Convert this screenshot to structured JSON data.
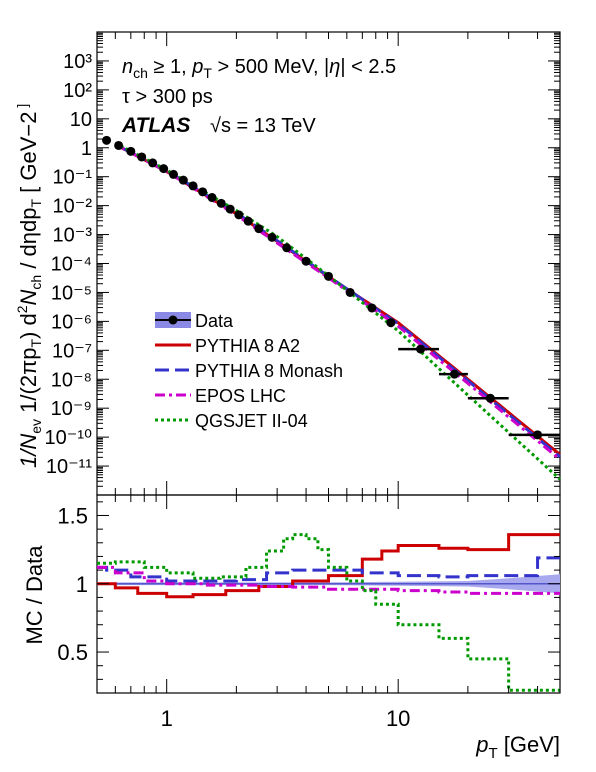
{
  "chart_data": [
    {
      "type": "line",
      "panel": "top",
      "xscale": "log",
      "yscale": "log",
      "xlim": [
        0.5,
        50
      ],
      "ylim": [
        1e-12,
        10000.0
      ],
      "ylabel_parts": [
        "1/N",
        "ev",
        " 1/(2πp",
        "T",
        ") d",
        "2",
        "N",
        "ch",
        " / dηdp",
        "T",
        " [ GeV",
        "−2",
        " ]"
      ],
      "yticks": [
        {
          "exp": -11,
          "label": "10⁻¹¹"
        },
        {
          "exp": -10,
          "label": "10⁻¹⁰"
        },
        {
          "exp": -9,
          "label": "10⁻⁹"
        },
        {
          "exp": -8,
          "label": "10⁻⁸"
        },
        {
          "exp": -7,
          "label": "10⁻⁷"
        },
        {
          "exp": -6,
          "label": "10⁻⁶"
        },
        {
          "exp": -5,
          "label": "10⁻⁵"
        },
        {
          "exp": -4,
          "label": "10⁻⁴"
        },
        {
          "exp": -3,
          "label": "10⁻³"
        },
        {
          "exp": -2,
          "label": "10⁻²"
        },
        {
          "exp": -1,
          "label": "10⁻¹"
        },
        {
          "exp": 0,
          "label": "1"
        },
        {
          "exp": 1,
          "label": "10"
        },
        {
          "exp": 2,
          "label": "10²"
        },
        {
          "exp": 3,
          "label": "10³"
        }
      ],
      "annotations": {
        "selection_line1": "n_ch ≥ 1,  p_T > 500 MeV,  |η| < 2.5",
        "selection_line2": "τ > 300 ps",
        "experiment": "ATLAS",
        "energy": "√s = 13 TeV"
      },
      "legend_position": "lower-left",
      "legend": [
        {
          "label": "Data",
          "color": "#000000",
          "style": "markers-band"
        },
        {
          "label": "PYTHIA 8 A2",
          "color": "#cc0000",
          "style": "solid"
        },
        {
          "label": "PYTHIA 8 Monash",
          "color": "#3333cc",
          "style": "dashed"
        },
        {
          "label": "EPOS LHC",
          "color": "#cc00cc",
          "style": "dash-dot"
        },
        {
          "label": "QGSJET II-04",
          "color": "#009900",
          "style": "dotted"
        }
      ],
      "series": [
        {
          "name": "Data",
          "points": [
            {
              "x": 0.55,
              "y": 1.8
            },
            {
              "x": 0.62,
              "y": 1.2
            },
            {
              "x": 0.7,
              "y": 0.75
            },
            {
              "x": 0.78,
              "y": 0.48
            },
            {
              "x": 0.87,
              "y": 0.3
            },
            {
              "x": 0.97,
              "y": 0.19
            },
            {
              "x": 1.07,
              "y": 0.12
            },
            {
              "x": 1.18,
              "y": 0.076
            },
            {
              "x": 1.3,
              "y": 0.048
            },
            {
              "x": 1.43,
              "y": 0.03
            },
            {
              "x": 1.57,
              "y": 0.019
            },
            {
              "x": 1.72,
              "y": 0.012
            },
            {
              "x": 1.88,
              "y": 0.0076
            },
            {
              "x": 2.05,
              "y": 0.0048
            },
            {
              "x": 2.25,
              "y": 0.0029
            },
            {
              "x": 2.5,
              "y": 0.0016
            },
            {
              "x": 2.85,
              "y": 0.0008
            },
            {
              "x": 3.3,
              "y": 0.00035
            },
            {
              "x": 4.0,
              "y": 0.00012
            },
            {
              "x": 5.0,
              "y": 3.6e-05
            },
            {
              "x": 6.2,
              "y": 1e-05
            },
            {
              "x": 7.7,
              "y": 2.9e-06
            },
            {
              "x": 9.3,
              "y": 9e-07
            },
            {
              "x": 12.5,
              "y": 1.1e-07
            },
            {
              "x": 17.5,
              "y": 1.5e-08
            },
            {
              "x": 25.0,
              "y": 2.2e-09
            },
            {
              "x": 40.0,
              "y": 1.2e-10
            }
          ],
          "xerr": [
            [
              12.5,
              10.0,
              15.0
            ],
            [
              17.5,
              15.0,
              20.0
            ],
            [
              25.0,
              20.0,
              30.0
            ],
            [
              40.0,
              30.0,
              50.0
            ]
          ]
        },
        {
          "name": "PYTHIA 8 A2",
          "points": [
            {
              "x": 0.6,
              "y": 1.3
            },
            {
              "x": 1.0,
              "y": 0.15
            },
            {
              "x": 2.0,
              "y": 0.0052
            },
            {
              "x": 3.0,
              "y": 0.00058
            },
            {
              "x": 5.0,
              "y": 3.5e-05
            },
            {
              "x": 10.0,
              "y": 9e-07
            },
            {
              "x": 20.0,
              "y": 1e-08
            },
            {
              "x": 50.0,
              "y": 2.5e-11
            }
          ]
        },
        {
          "name": "PYTHIA 8 Monash",
          "points": [
            {
              "x": 0.6,
              "y": 1.3
            },
            {
              "x": 1.0,
              "y": 0.16
            },
            {
              "x": 2.0,
              "y": 0.0056
            },
            {
              "x": 3.0,
              "y": 0.00062
            },
            {
              "x": 5.0,
              "y": 3.6e-05
            },
            {
              "x": 10.0,
              "y": 8.3e-07
            },
            {
              "x": 20.0,
              "y": 8.9e-09
            },
            {
              "x": 50.0,
              "y": 2.1e-11
            }
          ]
        },
        {
          "name": "EPOS LHC",
          "points": [
            {
              "x": 0.6,
              "y": 1.3
            },
            {
              "x": 1.0,
              "y": 0.15
            },
            {
              "x": 2.0,
              "y": 0.0047
            },
            {
              "x": 3.0,
              "y": 0.00051
            },
            {
              "x": 5.0,
              "y": 3.2e-05
            },
            {
              "x": 10.0,
              "y": 6.8e-07
            },
            {
              "x": 20.0,
              "y": 7.2e-09
            },
            {
              "x": 50.0,
              "y": 1.7e-11
            }
          ]
        },
        {
          "name": "QGSJET II-04",
          "points": [
            {
              "x": 0.6,
              "y": 1.45
            },
            {
              "x": 1.0,
              "y": 0.17
            },
            {
              "x": 2.0,
              "y": 0.0068
            },
            {
              "x": 3.0,
              "y": 0.00085
            },
            {
              "x": 5.0,
              "y": 3.8e-05
            },
            {
              "x": 10.0,
              "y": 4.7e-07
            },
            {
              "x": 20.0,
              "y": 2.8e-09
            },
            {
              "x": 50.0,
              "y": 3.5e-12
            }
          ]
        }
      ]
    },
    {
      "type": "line",
      "panel": "bottom",
      "xscale": "log",
      "xlim": [
        0.5,
        50
      ],
      "ylim": [
        0.2,
        1.65
      ],
      "ylabel": "MC / Data",
      "xlabel_parts": [
        "p",
        "T",
        " [GeV]"
      ],
      "yticks": [
        {
          "v": 0.5,
          "label": "0.5"
        },
        {
          "v": 1.0,
          "label": "1"
        },
        {
          "v": 1.5,
          "label": "1.5"
        }
      ],
      "xticks": [
        {
          "v": 1,
          "label": "1"
        },
        {
          "v": 10,
          "label": "10"
        }
      ],
      "reference_line": 1.0,
      "data_band": [
        [
          0.5,
          0.99,
          1.01
        ],
        [
          5.0,
          0.99,
          1.01
        ],
        [
          10.0,
          0.985,
          1.015
        ],
        [
          20.0,
          0.98,
          1.02
        ],
        [
          30.0,
          0.96,
          1.04
        ],
        [
          50.0,
          0.93,
          1.07
        ]
      ],
      "series": [
        {
          "name": "PYTHIA 8 A2",
          "points": [
            [
              0.5,
              1.0
            ],
            [
              0.6,
              0.97
            ],
            [
              0.75,
              0.93
            ],
            [
              1.0,
              0.905
            ],
            [
              1.3,
              0.92
            ],
            [
              1.8,
              0.95
            ],
            [
              2.5,
              0.98
            ],
            [
              3.5,
              1.02
            ],
            [
              5.0,
              1.06
            ],
            [
              7.0,
              1.18
            ],
            [
              8.5,
              1.24
            ],
            [
              10.0,
              1.28
            ],
            [
              15.0,
              1.26
            ],
            [
              20.0,
              1.25
            ],
            [
              30.0,
              1.36
            ],
            [
              50.0,
              1.36
            ]
          ]
        },
        {
          "name": "PYTHIA 8 Monash",
          "points": [
            [
              0.5,
              1.12
            ],
            [
              0.55,
              1.1
            ],
            [
              0.7,
              1.05
            ],
            [
              1.0,
              1.02
            ],
            [
              1.5,
              1.02
            ],
            [
              2.0,
              1.03
            ],
            [
              2.7,
              1.08
            ],
            [
              3.5,
              1.1
            ],
            [
              5.0,
              1.1
            ],
            [
              7.0,
              1.08
            ],
            [
              10.0,
              1.06
            ],
            [
              15.0,
              1.05
            ],
            [
              20.0,
              1.06
            ],
            [
              30.0,
              1.06
            ],
            [
              40.0,
              1.19
            ],
            [
              50.0,
              1.19
            ]
          ]
        },
        {
          "name": "EPOS LHC",
          "points": [
            [
              0.5,
              1.12
            ],
            [
              0.6,
              1.08
            ],
            [
              0.8,
              1.02
            ],
            [
              1.0,
              1.0
            ],
            [
              1.5,
              0.99
            ],
            [
              2.5,
              0.98
            ],
            [
              3.5,
              0.975
            ],
            [
              5.0,
              0.96
            ],
            [
              10.0,
              0.95
            ],
            [
              15.0,
              0.94
            ],
            [
              20.0,
              0.93
            ],
            [
              30.0,
              0.93
            ],
            [
              50.0,
              0.93
            ]
          ]
        },
        {
          "name": "QGSJET II-04",
          "points": [
            [
              0.5,
              1.15
            ],
            [
              0.6,
              1.16
            ],
            [
              0.8,
              1.12
            ],
            [
              1.0,
              1.08
            ],
            [
              1.3,
              1.04
            ],
            [
              1.7,
              1.05
            ],
            [
              2.2,
              1.12
            ],
            [
              2.7,
              1.24
            ],
            [
              3.2,
              1.33
            ],
            [
              3.5,
              1.36
            ],
            [
              4.0,
              1.33
            ],
            [
              4.5,
              1.25
            ],
            [
              5.0,
              1.12
            ],
            [
              6.0,
              1.02
            ],
            [
              7.0,
              0.95
            ],
            [
              8.0,
              0.85
            ],
            [
              10.0,
              0.7
            ],
            [
              15.0,
              0.6
            ],
            [
              20.0,
              0.45
            ],
            [
              30.0,
              0.22
            ],
            [
              50.0,
              0.22
            ]
          ]
        }
      ]
    }
  ]
}
